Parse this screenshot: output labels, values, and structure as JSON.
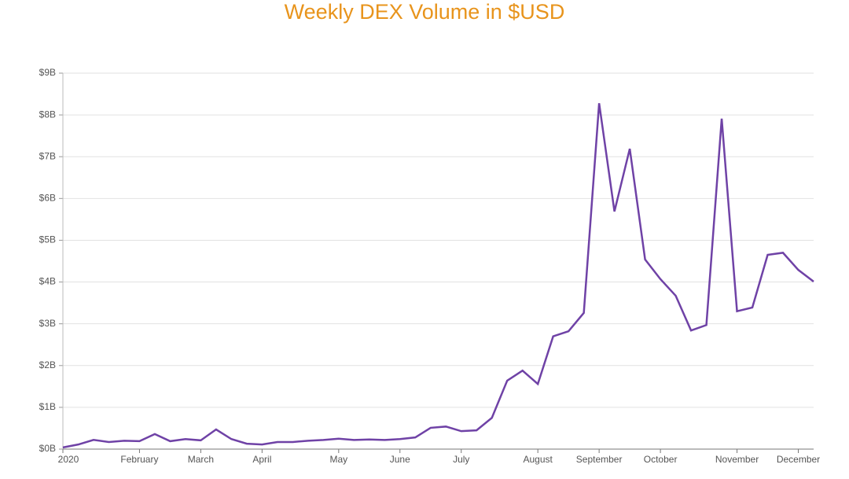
{
  "chart_data": {
    "type": "line",
    "title": "Weekly DEX Volume in $USD",
    "categories": [
      "2020",
      null,
      null,
      null,
      null,
      "February",
      null,
      null,
      null,
      "March",
      null,
      null,
      null,
      "April",
      null,
      null,
      null,
      null,
      "May",
      null,
      null,
      null,
      "June",
      null,
      null,
      null,
      "July",
      null,
      null,
      null,
      null,
      "August",
      null,
      null,
      null,
      "September",
      null,
      null,
      null,
      "October",
      null,
      null,
      null,
      null,
      "November",
      null,
      null,
      null,
      "December",
      null
    ],
    "values": [
      0.04,
      0.11,
      0.22,
      0.17,
      0.2,
      0.19,
      0.36,
      0.19,
      0.24,
      0.21,
      0.47,
      0.24,
      0.13,
      0.11,
      0.17,
      0.17,
      0.2,
      0.22,
      0.25,
      0.22,
      0.23,
      0.22,
      0.24,
      0.28,
      0.51,
      0.54,
      0.43,
      0.45,
      0.75,
      1.64,
      1.88,
      1.56,
      2.7,
      2.82,
      3.26,
      8.28,
      5.69,
      7.19,
      4.54,
      4.07,
      3.67,
      2.84,
      2.97,
      7.91,
      3.3,
      3.39,
      4.65,
      4.7,
      4.29,
      4.01
    ],
    "color": "#6f42a6",
    "ylim": [
      0,
      9
    ],
    "yticks": [
      {
        "value": 0,
        "label": "$0B"
      },
      {
        "value": 1,
        "label": "$1B"
      },
      {
        "value": 2,
        "label": "$2B"
      },
      {
        "value": 3,
        "label": "$3B"
      },
      {
        "value": 4,
        "label": "$4B"
      },
      {
        "value": 5,
        "label": "$5B"
      },
      {
        "value": 6,
        "label": "$6B"
      },
      {
        "value": 7,
        "label": "$7B"
      },
      {
        "value": 8,
        "label": "$8B"
      },
      {
        "value": 9,
        "label": "$9B"
      }
    ],
    "grid": true
  }
}
